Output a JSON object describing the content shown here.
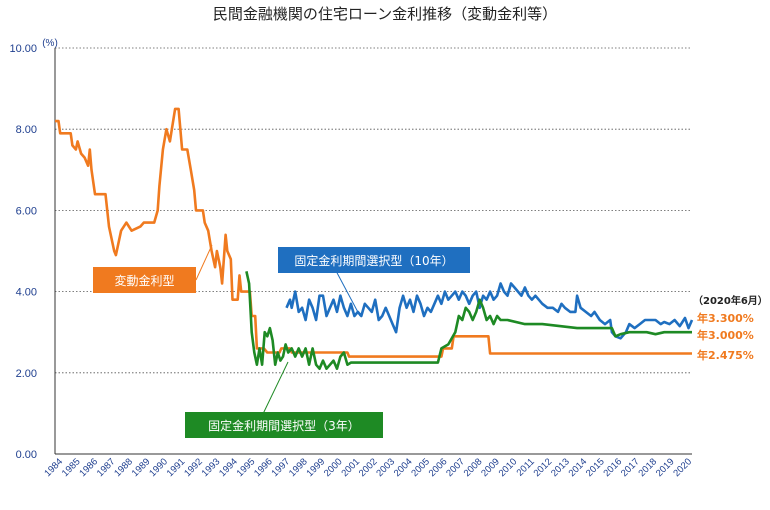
{
  "chart_data": {
    "type": "line",
    "title": "民間金融機関の住宅ローン金利推移（変動金利等）",
    "unit_label": "(%)",
    "ylim": [
      0,
      10
    ],
    "yticks": [
      "0.00",
      "2.00",
      "4.00",
      "6.00",
      "8.00",
      "10.00"
    ],
    "ytick_values": [
      0,
      2,
      4,
      6,
      8,
      10
    ],
    "xlim": [
      1984,
      2020.6
    ],
    "xticks": [
      "1984",
      "1985",
      "1986",
      "1987",
      "1988",
      "1989",
      "1990",
      "1991",
      "1992",
      "1993",
      "1994",
      "1995",
      "1996",
      "1997",
      "1998",
      "1999",
      "2000",
      "2001",
      "2002",
      "2003",
      "2004",
      "2005",
      "2006",
      "2007",
      "2008",
      "2009",
      "2010",
      "2011",
      "2012",
      "2013",
      "2014",
      "2015",
      "2016",
      "2017",
      "2018",
      "2019",
      "2020"
    ],
    "grid": true,
    "date_note": "（2020年6月）",
    "series": [
      {
        "name": "変動金利型",
        "color": "#f07a1f",
        "end_label": "年2.475%",
        "points": [
          [
            1984,
            8.2
          ],
          [
            1984.2,
            8.2
          ],
          [
            1984.3,
            7.9
          ],
          [
            1984.9,
            7.9
          ],
          [
            1985.0,
            7.6
          ],
          [
            1985.2,
            7.5
          ],
          [
            1985.3,
            7.7
          ],
          [
            1985.5,
            7.4
          ],
          [
            1985.7,
            7.3
          ],
          [
            1985.9,
            7.1
          ],
          [
            1986.0,
            7.5
          ],
          [
            1986.1,
            7.0
          ],
          [
            1986.3,
            6.4
          ],
          [
            1986.9,
            6.4
          ],
          [
            1987.1,
            5.6
          ],
          [
            1987.4,
            5.0
          ],
          [
            1987.5,
            4.9
          ],
          [
            1987.8,
            5.5
          ],
          [
            1988.1,
            5.7
          ],
          [
            1988.4,
            5.5
          ],
          [
            1988.9,
            5.6
          ],
          [
            1989.1,
            5.7
          ],
          [
            1989.7,
            5.7
          ],
          [
            1989.9,
            6.0
          ],
          [
            1990.0,
            6.6
          ],
          [
            1990.2,
            7.5
          ],
          [
            1990.4,
            8.0
          ],
          [
            1990.6,
            7.7
          ],
          [
            1990.9,
            8.5
          ],
          [
            1991.1,
            8.5
          ],
          [
            1991.3,
            7.5
          ],
          [
            1991.6,
            7.5
          ],
          [
            1991.8,
            7.0
          ],
          [
            1992.0,
            6.5
          ],
          [
            1992.1,
            6.0
          ],
          [
            1992.5,
            6.0
          ],
          [
            1992.6,
            5.7
          ],
          [
            1992.8,
            5.5
          ],
          [
            1993.0,
            5.0
          ],
          [
            1993.2,
            4.6
          ],
          [
            1993.3,
            5.0
          ],
          [
            1993.5,
            4.6
          ],
          [
            1993.6,
            4.2
          ],
          [
            1993.8,
            5.4
          ],
          [
            1993.9,
            5.0
          ],
          [
            1994.1,
            4.8
          ],
          [
            1994.2,
            3.8
          ],
          [
            1994.5,
            3.8
          ],
          [
            1994.6,
            4.4
          ],
          [
            1994.7,
            4.0
          ],
          [
            1995.2,
            4.0
          ],
          [
            1995.3,
            3.4
          ],
          [
            1995.5,
            3.4
          ],
          [
            1995.6,
            2.6
          ],
          [
            1996.0,
            2.6
          ],
          [
            1996.2,
            2.5
          ],
          [
            1996.9,
            2.5
          ],
          [
            1997.0,
            2.6
          ],
          [
            1997.5,
            2.6
          ],
          [
            1997.6,
            2.5
          ],
          [
            2000.8,
            2.5
          ],
          [
            2000.9,
            2.4
          ],
          [
            2006.2,
            2.4
          ],
          [
            2006.3,
            2.6
          ],
          [
            2006.8,
            2.6
          ],
          [
            2006.9,
            2.9
          ],
          [
            2008.9,
            2.9
          ],
          [
            2009.0,
            2.475
          ],
          [
            2020.6,
            2.475
          ]
        ]
      },
      {
        "name": "固定金利期間選択型（10年）",
        "color": "#1f6fc0",
        "end_label": "年3.300%",
        "points": [
          [
            1997.3,
            3.6
          ],
          [
            1997.5,
            3.8
          ],
          [
            1997.6,
            3.6
          ],
          [
            1997.8,
            4.0
          ],
          [
            1998.0,
            3.5
          ],
          [
            1998.2,
            3.6
          ],
          [
            1998.4,
            3.3
          ],
          [
            1998.6,
            3.8
          ],
          [
            1998.8,
            3.6
          ],
          [
            1999.0,
            3.3
          ],
          [
            1999.2,
            3.9
          ],
          [
            1999.4,
            3.9
          ],
          [
            1999.6,
            3.4
          ],
          [
            1999.8,
            3.6
          ],
          [
            2000.0,
            3.8
          ],
          [
            2000.2,
            3.5
          ],
          [
            2000.4,
            3.9
          ],
          [
            2000.6,
            3.6
          ],
          [
            2000.8,
            3.4
          ],
          [
            2001.0,
            3.7
          ],
          [
            2001.2,
            3.4
          ],
          [
            2001.4,
            3.5
          ],
          [
            2001.6,
            3.4
          ],
          [
            2001.8,
            3.7
          ],
          [
            2002.0,
            3.6
          ],
          [
            2002.2,
            3.5
          ],
          [
            2002.4,
            3.8
          ],
          [
            2002.6,
            3.3
          ],
          [
            2002.8,
            3.4
          ],
          [
            2003.0,
            3.6
          ],
          [
            2003.2,
            3.4
          ],
          [
            2003.4,
            3.2
          ],
          [
            2003.6,
            3.0
          ],
          [
            2003.8,
            3.6
          ],
          [
            2004.0,
            3.9
          ],
          [
            2004.2,
            3.6
          ],
          [
            2004.4,
            3.8
          ],
          [
            2004.6,
            3.5
          ],
          [
            2004.8,
            3.9
          ],
          [
            2005.0,
            3.7
          ],
          [
            2005.2,
            3.4
          ],
          [
            2005.4,
            3.6
          ],
          [
            2005.6,
            3.5
          ],
          [
            2005.8,
            3.7
          ],
          [
            2006.0,
            3.9
          ],
          [
            2006.2,
            3.7
          ],
          [
            2006.4,
            4.0
          ],
          [
            2006.6,
            3.8
          ],
          [
            2006.8,
            3.9
          ],
          [
            2007.0,
            4.0
          ],
          [
            2007.2,
            3.8
          ],
          [
            2007.4,
            4.0
          ],
          [
            2007.6,
            3.9
          ],
          [
            2007.8,
            3.7
          ],
          [
            2008.0,
            3.9
          ],
          [
            2008.2,
            4.0
          ],
          [
            2008.4,
            3.6
          ],
          [
            2008.6,
            3.9
          ],
          [
            2008.8,
            3.8
          ],
          [
            2009.0,
            4.0
          ],
          [
            2009.2,
            3.8
          ],
          [
            2009.4,
            3.9
          ],
          [
            2009.6,
            4.2
          ],
          [
            2009.8,
            4.0
          ],
          [
            2010.0,
            3.9
          ],
          [
            2010.2,
            4.2
          ],
          [
            2010.4,
            4.1
          ],
          [
            2010.6,
            4.0
          ],
          [
            2010.8,
            3.9
          ],
          [
            2011.0,
            4.1
          ],
          [
            2011.2,
            3.9
          ],
          [
            2011.4,
            3.8
          ],
          [
            2011.6,
            3.9
          ],
          [
            2011.8,
            3.8
          ],
          [
            2012.0,
            3.7
          ],
          [
            2012.3,
            3.6
          ],
          [
            2012.6,
            3.6
          ],
          [
            2012.9,
            3.5
          ],
          [
            2013.1,
            3.7
          ],
          [
            2013.3,
            3.6
          ],
          [
            2013.6,
            3.5
          ],
          [
            2013.9,
            3.5
          ],
          [
            2014.0,
            3.9
          ],
          [
            2014.2,
            3.6
          ],
          [
            2014.5,
            3.5
          ],
          [
            2014.8,
            3.4
          ],
          [
            2015.0,
            3.5
          ],
          [
            2015.3,
            3.3
          ],
          [
            2015.6,
            3.2
          ],
          [
            2015.9,
            3.3
          ],
          [
            2016.0,
            3.0
          ],
          [
            2016.2,
            2.9
          ],
          [
            2016.5,
            2.85
          ],
          [
            2016.8,
            3.0
          ],
          [
            2017.0,
            3.2
          ],
          [
            2017.3,
            3.1
          ],
          [
            2017.6,
            3.2
          ],
          [
            2017.9,
            3.3
          ],
          [
            2018.2,
            3.3
          ],
          [
            2018.5,
            3.3
          ],
          [
            2018.8,
            3.2
          ],
          [
            2019.0,
            3.25
          ],
          [
            2019.3,
            3.2
          ],
          [
            2019.6,
            3.3
          ],
          [
            2019.9,
            3.15
          ],
          [
            2020.2,
            3.35
          ],
          [
            2020.4,
            3.1
          ],
          [
            2020.6,
            3.3
          ]
        ]
      },
      {
        "name": "固定金利期間選択型（3年）",
        "color": "#1e8a24",
        "end_label": "年3.000%",
        "points": [
          [
            1995.0,
            4.5
          ],
          [
            1995.15,
            4.2
          ],
          [
            1995.3,
            3.0
          ],
          [
            1995.45,
            2.5
          ],
          [
            1995.6,
            2.2
          ],
          [
            1995.75,
            2.6
          ],
          [
            1995.9,
            2.2
          ],
          [
            1996.05,
            3.0
          ],
          [
            1996.2,
            2.9
          ],
          [
            1996.35,
            3.1
          ],
          [
            1996.5,
            2.8
          ],
          [
            1996.65,
            2.2
          ],
          [
            1996.8,
            2.5
          ],
          [
            1996.95,
            2.3
          ],
          [
            1997.1,
            2.4
          ],
          [
            1997.25,
            2.7
          ],
          [
            1997.4,
            2.5
          ],
          [
            1997.6,
            2.6
          ],
          [
            1997.8,
            2.4
          ],
          [
            1998.0,
            2.6
          ],
          [
            1998.2,
            2.4
          ],
          [
            1998.4,
            2.6
          ],
          [
            1998.6,
            2.2
          ],
          [
            1998.8,
            2.6
          ],
          [
            1999.0,
            2.2
          ],
          [
            1999.2,
            2.1
          ],
          [
            1999.4,
            2.3
          ],
          [
            1999.6,
            2.1
          ],
          [
            1999.8,
            2.2
          ],
          [
            2000.0,
            2.3
          ],
          [
            2000.2,
            2.1
          ],
          [
            2000.4,
            2.4
          ],
          [
            2000.6,
            2.5
          ],
          [
            2000.8,
            2.2
          ],
          [
            2001.0,
            2.25
          ],
          [
            2002.0,
            2.25
          ],
          [
            2003.0,
            2.25
          ],
          [
            2004.0,
            2.25
          ],
          [
            2005.0,
            2.25
          ],
          [
            2006.0,
            2.25
          ],
          [
            2006.2,
            2.6
          ],
          [
            2006.6,
            2.7
          ],
          [
            2007.0,
            3.0
          ],
          [
            2007.2,
            3.4
          ],
          [
            2007.4,
            3.3
          ],
          [
            2007.6,
            3.6
          ],
          [
            2007.8,
            3.5
          ],
          [
            2008.0,
            3.3
          ],
          [
            2008.2,
            3.5
          ],
          [
            2008.4,
            3.8
          ],
          [
            2008.6,
            3.6
          ],
          [
            2008.8,
            3.3
          ],
          [
            2009.0,
            3.4
          ],
          [
            2009.2,
            3.2
          ],
          [
            2009.4,
            3.4
          ],
          [
            2009.6,
            3.3
          ],
          [
            2010.0,
            3.3
          ],
          [
            2011.0,
            3.2
          ],
          [
            2012.0,
            3.2
          ],
          [
            2013.0,
            3.15
          ],
          [
            2014.0,
            3.1
          ],
          [
            2015.0,
            3.1
          ],
          [
            2016.0,
            3.1
          ],
          [
            2016.2,
            2.9
          ],
          [
            2016.5,
            2.95
          ],
          [
            2017.0,
            3.0
          ],
          [
            2018.0,
            3.0
          ],
          [
            2018.5,
            2.95
          ],
          [
            2019.0,
            3.0
          ],
          [
            2020.0,
            3.0
          ],
          [
            2020.6,
            3.0
          ]
        ]
      }
    ]
  }
}
